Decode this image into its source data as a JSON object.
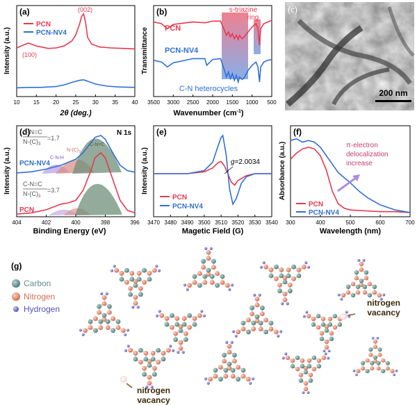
{
  "colors": {
    "pcn": "#e8384f",
    "nv4": "#2f6fd6",
    "carbon": "#5f8f89",
    "nitrogen": "#e38b72",
    "hydrogen": "#6d6fd0",
    "vacancy": "#f3dede"
  },
  "legend": {
    "pcn": "PCN",
    "nv4": "PCN-NV4"
  },
  "panels": {
    "a": {
      "letter": "(a)",
      "xlabel": "2θ (deg.)",
      "ylabel": "Intensity (a.u.)",
      "xticks": [
        "10",
        "15",
        "20",
        "25",
        "30",
        "35",
        "40"
      ],
      "peak_002": "(002)",
      "peak_100": "(100)"
    },
    "b": {
      "letter": "(b)",
      "xlabel": "Wavenumber (cm",
      "xlabel_sup": "-1",
      "xlabel_end": ")",
      "ylabel": "Transmittance",
      "xticks": [
        "3500",
        "3000",
        "2500",
        "2000",
        "1500",
        "1000",
        "500"
      ],
      "label_triazine_1": "s-triazine",
      "label_triazine_2": "ring",
      "label_heterocycles": "C-N heterocycles",
      "series_pcn": "PCN",
      "series_nv4": "PCN-NV4"
    },
    "c": {
      "letter": "(c)",
      "scalebar": "200 nm"
    },
    "d": {
      "letter": "(d)",
      "title": "N 1s",
      "xlabel": "Binding Energy (eV)",
      "ylabel": "Intensity (a.u.)",
      "xticks": [
        "404",
        "402",
        "400",
        "398",
        "396"
      ],
      "ratio_num": "C-N=C",
      "ratio_den": "N-(C)",
      "ratio_den_sub": "3",
      "ratio_nv4": "=1.7",
      "ratio_pcn": "=3.7",
      "comp_cnc": "C-N=C",
      "comp_nc3": "N-(C)",
      "comp_nc3_sub": "3",
      "comp_cnh": "C-N-H",
      "series_nv4": "PCN-NV4",
      "series_pcn": "PCN"
    },
    "e": {
      "letter": "(e)",
      "xlabel": "Magetic Field (G)",
      "ylabel": "Intensity (a.u.)",
      "xticks": [
        "3470",
        "3480",
        "3490",
        "3500",
        "3510",
        "3520",
        "3530",
        "3540"
      ],
      "g_label": "g",
      "g_value": "=2.0034"
    },
    "f": {
      "letter": "(f)",
      "xlabel": "Wavelength (nm)",
      "ylabel": "Absorbance (a.u.)",
      "xticks": [
        "300",
        "400",
        "500",
        "600",
        "700"
      ],
      "annot_1": "π-electron",
      "annot_2": "delocalization",
      "annot_3": "increase"
    },
    "g": {
      "letter": "(g)",
      "legend_carbon": "Carbon",
      "legend_nitrogen": "Nitrogen",
      "legend_hydrogen": "Hydrogen",
      "vacancy_1a": "nitrogen",
      "vacancy_1b": "vacancy",
      "vacancy_2a": "nitrogen",
      "vacancy_2b": "vacancy"
    }
  },
  "chart_data": [
    {
      "panel": "a",
      "type": "line",
      "xlim": [
        10,
        40
      ],
      "series": [
        {
          "name": "PCN",
          "x": [
            10,
            12,
            13,
            15,
            18,
            20,
            22,
            24,
            25,
            26,
            26.5,
            27,
            27.5,
            28,
            29,
            31,
            34,
            37,
            40
          ],
          "y": [
            0.3,
            0.37,
            0.4,
            0.34,
            0.29,
            0.3,
            0.34,
            0.44,
            0.57,
            0.8,
            0.95,
            1.0,
            0.82,
            0.52,
            0.38,
            0.32,
            0.3,
            0.29,
            0.28
          ]
        },
        {
          "name": "PCN-NV4",
          "x": [
            10,
            13,
            16,
            20,
            22,
            24,
            26,
            27,
            28,
            30,
            33,
            36,
            40
          ],
          "y": [
            0.06,
            0.07,
            0.07,
            0.09,
            0.13,
            0.19,
            0.24,
            0.25,
            0.22,
            0.15,
            0.1,
            0.08,
            0.07
          ]
        }
      ]
    },
    {
      "panel": "b",
      "type": "line",
      "xlim": [
        3500,
        500
      ],
      "reversed": true,
      "series": [
        {
          "name": "PCN",
          "x": [
            3500,
            3300,
            3150,
            3000,
            2500,
            2200,
            2000,
            1800,
            1700,
            1650,
            1600,
            1550,
            1500,
            1450,
            1400,
            1350,
            1320,
            1250,
            1200,
            1100,
            1000,
            900,
            850,
            810,
            780,
            700,
            600,
            500
          ],
          "y": [
            0.82,
            0.8,
            0.74,
            0.79,
            0.82,
            0.81,
            0.83,
            0.83,
            0.72,
            0.66,
            0.7,
            0.64,
            0.68,
            0.62,
            0.66,
            0.61,
            0.66,
            0.62,
            0.64,
            0.7,
            0.76,
            0.8,
            0.74,
            0.54,
            0.74,
            0.8,
            0.82,
            0.84
          ]
        },
        {
          "name": "PCN-NV4",
          "x": [
            3500,
            3300,
            3150,
            3000,
            2500,
            2200,
            2150,
            2000,
            1800,
            1700,
            1650,
            1600,
            1550,
            1500,
            1450,
            1400,
            1350,
            1320,
            1250,
            1200,
            1100,
            1000,
            900,
            850,
            810,
            780,
            700,
            600,
            500
          ],
          "y": [
            0.36,
            0.34,
            0.28,
            0.33,
            0.38,
            0.38,
            0.3,
            0.37,
            0.38,
            0.24,
            0.16,
            0.22,
            0.14,
            0.2,
            0.12,
            0.18,
            0.1,
            0.16,
            0.13,
            0.15,
            0.24,
            0.3,
            0.34,
            0.28,
            0.1,
            0.28,
            0.34,
            0.36,
            0.37
          ]
        }
      ]
    },
    {
      "panel": "d",
      "type": "line",
      "xlim": [
        404,
        396
      ],
      "reversed": true,
      "series": [
        {
          "name": "PCN-NV4",
          "x": [
            404,
            403,
            402,
            401,
            400.5,
            400,
            399.5,
            399,
            398.7,
            398.3,
            398,
            397.5,
            397,
            396.5,
            396
          ],
          "y": [
            0.02,
            0.05,
            0.12,
            0.22,
            0.3,
            0.38,
            0.55,
            0.8,
            0.95,
            1.0,
            0.9,
            0.55,
            0.22,
            0.08,
            0.04
          ]
        },
        {
          "name": "PCN",
          "x": [
            404,
            403,
            402,
            401,
            400.5,
            400,
            399.5,
            399,
            398.7,
            398.3,
            398,
            397.5,
            397,
            396.5,
            396
          ],
          "y": [
            0.02,
            0.04,
            0.09,
            0.18,
            0.2,
            0.24,
            0.4,
            0.7,
            0.92,
            1.0,
            0.92,
            0.58,
            0.24,
            0.08,
            0.04
          ]
        }
      ]
    },
    {
      "panel": "e",
      "type": "line",
      "xlim": [
        3470,
        3540
      ],
      "series": [
        {
          "name": "PCN",
          "x": [
            3470,
            3480,
            3490,
            3500,
            3505,
            3508,
            3510,
            3512,
            3514,
            3516,
            3518,
            3520,
            3525,
            3530,
            3540
          ],
          "y": [
            0.0,
            0.0,
            0.0,
            0.05,
            0.15,
            0.28,
            0.32,
            0.2,
            0.0,
            -0.22,
            -0.3,
            -0.18,
            -0.05,
            0.0,
            0.0
          ]
        },
        {
          "name": "PCN-NV4",
          "x": [
            3470,
            3480,
            3490,
            3500,
            3505,
            3508,
            3510,
            3511,
            3513,
            3515,
            3517,
            3519,
            3522,
            3525,
            3530,
            3540
          ],
          "y": [
            0.0,
            0.0,
            0.0,
            0.08,
            0.3,
            0.7,
            0.95,
            1.0,
            0.5,
            -0.4,
            -0.8,
            -0.65,
            -0.25,
            -0.08,
            0.0,
            0.0
          ]
        }
      ]
    },
    {
      "panel": "f",
      "type": "line",
      "xlim": [
        300,
        700
      ],
      "series": [
        {
          "name": "PCN",
          "x": [
            300,
            320,
            340,
            360,
            380,
            400,
            420,
            440,
            460,
            480,
            500,
            550,
            600,
            650,
            700
          ],
          "y": [
            0.68,
            0.75,
            0.8,
            0.82,
            0.8,
            0.72,
            0.55,
            0.3,
            0.15,
            0.1,
            0.08,
            0.07,
            0.06,
            0.06,
            0.05
          ]
        },
        {
          "name": "PCN-NV4",
          "x": [
            300,
            320,
            340,
            360,
            380,
            400,
            420,
            440,
            460,
            480,
            500,
            530,
            560,
            600,
            650,
            700
          ],
          "y": [
            0.9,
            0.92,
            0.88,
            0.9,
            0.88,
            0.82,
            0.72,
            0.62,
            0.52,
            0.46,
            0.4,
            0.3,
            0.22,
            0.14,
            0.08,
            0.05
          ]
        }
      ]
    }
  ]
}
